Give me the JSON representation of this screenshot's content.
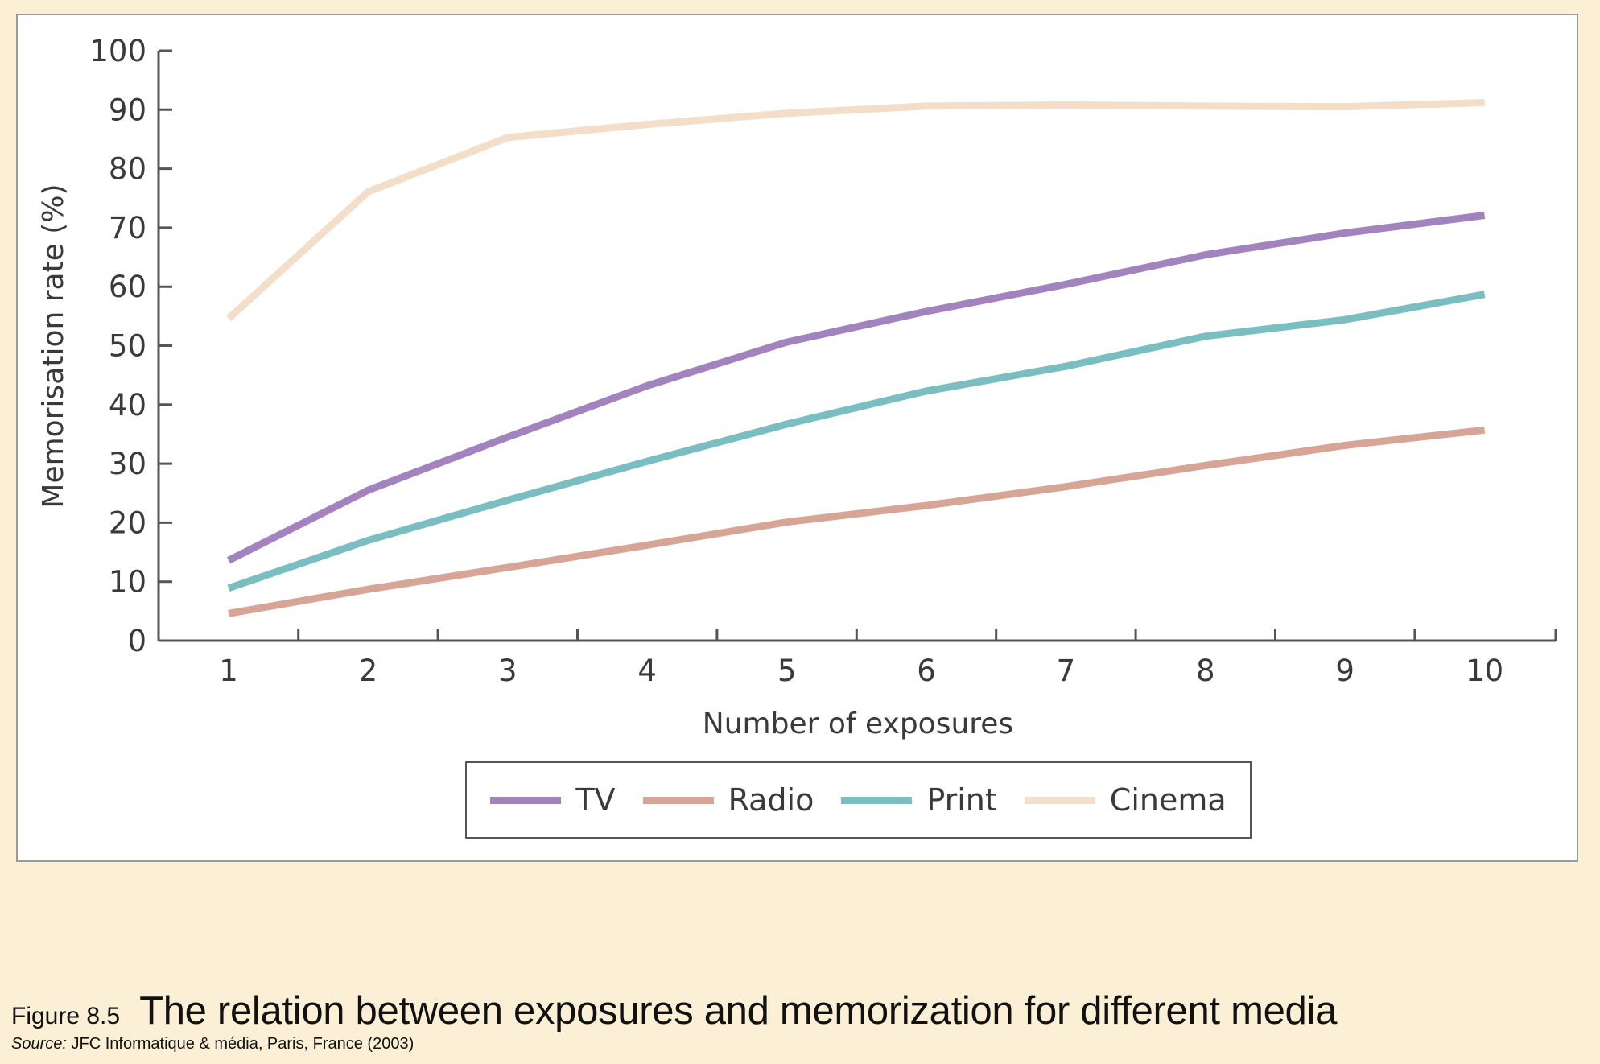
{
  "chart_data": {
    "type": "line",
    "title": "The relation between exposures and memorization for different media",
    "xlabel": "Number of exposures",
    "ylabel": "Memorisation rate (%)",
    "x": [
      1,
      2,
      3,
      4,
      5,
      6,
      7,
      8,
      9,
      10
    ],
    "x_tick_labels": [
      "1",
      "2",
      "3",
      "4",
      "5",
      "6",
      "7",
      "8",
      "9",
      "10"
    ],
    "y_tick_labels": [
      "0",
      "10",
      "20",
      "30",
      "40",
      "50",
      "60",
      "70",
      "80",
      "90",
      "100"
    ],
    "ylim": [
      0,
      100
    ],
    "xlim": [
      0.5,
      10.5
    ],
    "grid": false,
    "legend_position": "bottom-center",
    "series": [
      {
        "name": "TV",
        "color": "#A283BE",
        "values": [
          13.6,
          25.5,
          34.5,
          43.2,
          50.6,
          55.8,
          60.4,
          65.4,
          69.1,
          72.1
        ]
      },
      {
        "name": "Radio",
        "color": "#D6A596",
        "values": [
          4.6,
          8.7,
          12.4,
          16.2,
          20.1,
          22.9,
          26.1,
          29.7,
          33.1,
          35.7
        ]
      },
      {
        "name": "Print",
        "color": "#7BBEC2",
        "values": [
          8.9,
          17.0,
          23.8,
          30.4,
          36.7,
          42.3,
          46.5,
          51.6,
          54.4,
          58.7
        ]
      },
      {
        "name": "Cinema",
        "color": "#F3DEC9",
        "values": [
          54.6,
          76.1,
          85.3,
          87.5,
          89.4,
          90.6,
          90.8,
          90.6,
          90.5,
          91.2
        ]
      }
    ]
  },
  "caption": {
    "figure_number": "Figure 8.5",
    "title": "The relation between exposures and memorization for different media",
    "source_label": "Source:",
    "source_text": "JFC Informatique & média, Paris, France (2003)"
  }
}
